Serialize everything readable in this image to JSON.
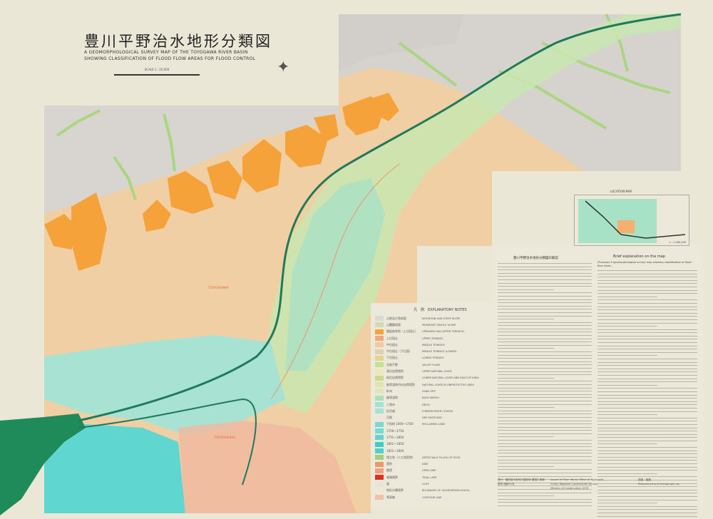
{
  "title": {
    "japanese": "豊川平野治水地形分類図",
    "english_line1": "A GEOMORPHOLOGICAL SURVEY MAP OF THE TOYOGAWA RIVER BASIN",
    "english_line2": "SHOWING CLASSIFICATION OF FLOOD FLOW AREAS FOR FLOOD CONTROL",
    "scale": "SCALE 1 : 25,000"
  },
  "map_labels": {
    "city1": "TOYOKAWA",
    "city2": "TOYOHASHI"
  },
  "colors": {
    "mountain": "#d6d3cf",
    "upper_terrace": "#f3a25a",
    "terrace": "#f2c89c",
    "valley": "#b8d98c",
    "reclaimed": "#5fd6d0",
    "sea": "#1f8a5a",
    "river": "#1f7a5a"
  },
  "legend": {
    "title": "凡　例　EXPLANATORY NOTES",
    "items": [
      {
        "jp": "山地及び急斜面",
        "en": "MOUNTAIN AND STEEP SLOPE",
        "color": "#dcd9d3"
      },
      {
        "jp": "山麓緩斜面",
        "en": "PIEDMONT GENTLE SLOPE",
        "color": "#cfdcb0"
      },
      {
        "jp": "隆起扇状地（上位段丘）",
        "en": "UPRAISED FAN (UPPER TERRACE)",
        "color": "#f5a23a"
      },
      {
        "jp": "上位段丘",
        "en": "UPPER TERRACE",
        "color": "#f2a878"
      },
      {
        "jp": "中位段丘",
        "en": "MIDDLE TERRACE",
        "color": "#f2caa0"
      },
      {
        "jp": "中位段丘（下位面）",
        "en": "MIDDLE TERRACE (LOWER)",
        "color": "#ddd2b0"
      },
      {
        "jp": "下位段丘",
        "en": "LOWER TERRACE",
        "color": "#e3d490"
      },
      {
        "jp": "谷底平野",
        "en": "VALLEY PLAIN",
        "color": "#c2e096"
      },
      {
        "jp": "高位自然堤防",
        "en": "UPPER NATURAL LEVEE",
        "color": "#ece6b8"
      },
      {
        "jp": "低位自然堤防",
        "en": "LOWER NATURAL LEVEE AND BUILT-UP AREA",
        "color": "#cbd98c"
      },
      {
        "jp": "後背湿地内の自然堤防",
        "en": "NATURAL LEVEE IN UNPROTECTED AREA",
        "color": "#e2e2b0"
      },
      {
        "jp": "砂州",
        "en": "SAND SPIT",
        "color": "#e3e4b8"
      },
      {
        "jp": "後背湿地",
        "en": "BACK MARSH",
        "color": "#a8e0bc"
      },
      {
        "jp": "三角州",
        "en": "DELTA",
        "color": "#9fe3d2"
      },
      {
        "jp": "旧河道",
        "en": "FORMER RIVER COURSE",
        "color": "#a6e2d6"
      },
      {
        "jp": "河原",
        "en": "DRY RIVER BED",
        "color": "#e8e8dc"
      },
      {
        "jp": "干拓地 1600〜1700",
        "en": "RECLAIMED LAND",
        "color": "#7ad9d2"
      },
      {
        "jp": "1700〜1750",
        "en": "",
        "color": "#76dbd6"
      },
      {
        "jp": "1751〜1800",
        "en": "",
        "color": "#63d4d0"
      },
      {
        "jp": "1801〜1850",
        "en": "",
        "color": "#3fcdc8"
      },
      {
        "jp": "1851〜1900",
        "en": "",
        "color": "#4fd0cc"
      },
      {
        "jp": "埋立地（人工改変地）",
        "en": "ARTIFICIALLY FILLED UP FIELD",
        "color": "#9ed07e"
      },
      {
        "jp": "堤防",
        "en": "DIKE",
        "color": "#f0946a"
      },
      {
        "jp": "霞堤",
        "en": "OPEN DIKE",
        "color": "#f0a080"
      },
      {
        "jp": "感潮限界",
        "en": "TIDAL LIMIT",
        "color": "#e03020"
      },
      {
        "jp": "崖",
        "en": "CLIFF",
        "color": "#e8e4d8"
      },
      {
        "jp": "地形分類境界",
        "en": "BOUNDARY OF GEOMORPHOLOGICAL",
        "color": "#ece9da"
      },
      {
        "jp": "等高線",
        "en": "CONTOUR LINE",
        "color": "#f0c0a8"
      }
    ]
  },
  "location_map": {
    "title": "LOCATION MAP",
    "scale": "1 : 1,000,000"
  },
  "explanation": {
    "jp_title": "豊川平野治水地形分類図の解説",
    "en_title": "Brief explanation on the map",
    "en_first": "(Purpose)  A geomorphological survey map showing classification of flood flow areas..."
  },
  "credits": {
    "jp_publisher": "発行：建設省中部地方建設局 豊橋工事事務所 昭和51年",
    "en_publisher_1": "Issued of River Works Office at Toyohashi,",
    "en_publisher_2": "Chubu Regional Construction Bureau,",
    "en_publisher_3": "Ministry of Construction 1976",
    "jp_survey": "調査・編集：",
    "en_survey": "Researched and Cartography by"
  }
}
